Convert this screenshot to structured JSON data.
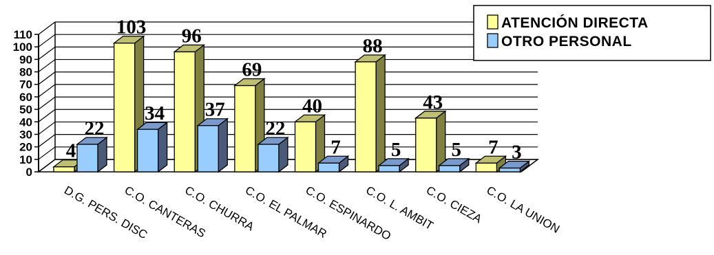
{
  "chart_data": {
    "type": "bar",
    "title": "",
    "xlabel": "",
    "ylabel": "",
    "ylim": [
      0,
      110
    ],
    "yticks": [
      0,
      10,
      20,
      30,
      40,
      50,
      60,
      70,
      80,
      90,
      100,
      110
    ],
    "grid": true,
    "legend_position": "top-right",
    "categories": [
      "D.G. PERS. DISC",
      "C.O. CANTERAS",
      "C.O. CHURRA",
      "C.O. EL PALMAR",
      "C.O. ESPINARDO",
      "C.O. L. AMBIT",
      "C.O. CIEZA",
      "C.O. LA UNION"
    ],
    "series": [
      {
        "name": "ATENCIÓN DIRECTA",
        "values": [
          4,
          103,
          96,
          69,
          40,
          88,
          43,
          7
        ],
        "color": "#FFFF99",
        "side_color": "#808040",
        "top_color": "#BFBF73"
      },
      {
        "name": "OTRO PERSONAL",
        "values": [
          22,
          34,
          37,
          22,
          7,
          5,
          5,
          3
        ],
        "color": "#99CCFF",
        "side_color": "#4A5A78",
        "top_color": "#7A9ACC"
      }
    ]
  }
}
